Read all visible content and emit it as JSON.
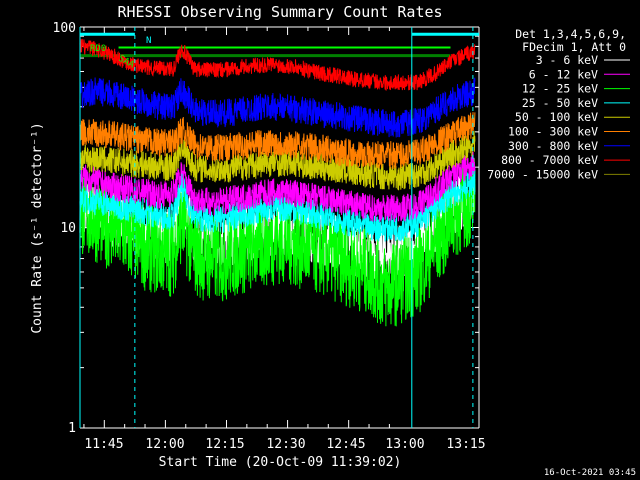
{
  "chart_data": {
    "type": "line",
    "title": "RHESSI Observing Summary Count Rates",
    "xlabel": "Start Time (20-Oct-09 11:39:02)",
    "ylabel": "Count Rate (s⁻¹ detector⁻¹)",
    "yscale": "log",
    "ylim": [
      1,
      100
    ],
    "xlim": [
      "11:39:02",
      "13:17:00"
    ],
    "x_ticks": [
      "11:45",
      "12:00",
      "12:15",
      "12:30",
      "12:45",
      "13:00",
      "13:15"
    ],
    "y_ticks": [
      "1",
      "10",
      "100"
    ],
    "legend_title": [
      "Det 1,3,4,5,6,9,",
      "FDecim 1, Att 0"
    ],
    "legend_position": "right",
    "series": [
      {
        "name": "3 - 6 keV",
        "color": "#ffffff",
        "values": [
          13,
          12,
          11,
          10.5,
          9.5,
          9,
          9.5,
          14,
          9,
          8.5,
          8.5,
          9,
          9.5,
          10,
          10,
          9.5,
          9,
          8.5,
          8,
          7.5,
          7.5,
          7.5,
          8,
          10,
          12.5,
          14.5
        ]
      },
      {
        "name": "6 - 12 keV",
        "color": "#ff00ff",
        "values": [
          18,
          17,
          16,
          15.5,
          15,
          14.5,
          15,
          19,
          14,
          13.5,
          13.5,
          14,
          14.5,
          15,
          15,
          14.5,
          14,
          13.5,
          13,
          12.5,
          12.5,
          12.5,
          13,
          15,
          18,
          21
        ]
      },
      {
        "name": "12 - 25 keV",
        "color": "#00ff00",
        "values": [
          12,
          11,
          10,
          9,
          8,
          7.5,
          7.5,
          11,
          7.5,
          7,
          7,
          7.5,
          8,
          8.5,
          8.5,
          8,
          7.5,
          7,
          6.5,
          6,
          5,
          5.5,
          6,
          8,
          11,
          14
        ]
      },
      {
        "name": "25 - 50 keV",
        "color": "#00ffff",
        "values": [
          14,
          13.5,
          13,
          12.5,
          12,
          11.5,
          11.5,
          16,
          11.5,
          11,
          11,
          11.5,
          12,
          12.5,
          12.5,
          12,
          11.5,
          11,
          10.5,
          10,
          10,
          10,
          10.5,
          12.5,
          14.5,
          17
        ]
      },
      {
        "name": "50 - 100 keV",
        "color": "#cccc00",
        "values": [
          22,
          22,
          21.5,
          21,
          20.5,
          20,
          20,
          26,
          20,
          19.5,
          19.5,
          20,
          20.5,
          21,
          21,
          20.5,
          20,
          19.5,
          19,
          18.5,
          18,
          18,
          18.5,
          20,
          23,
          26
        ]
      },
      {
        "name": "100 - 300 keV",
        "color": "#ff7f00",
        "values": [
          30,
          29.5,
          29,
          28,
          27,
          26.5,
          26.5,
          31,
          26,
          25,
          25,
          25.5,
          26,
          26.5,
          26,
          25.5,
          25,
          24,
          23.5,
          23,
          23,
          23,
          23.5,
          26,
          29,
          33
        ]
      },
      {
        "name": "300 - 800 keV",
        "color": "#0000ff",
        "values": [
          45,
          48,
          46,
          44,
          42,
          40,
          40,
          49,
          39,
          37,
          37,
          38,
          39.5,
          40,
          39.5,
          38.5,
          37,
          36,
          35,
          34,
          33,
          33,
          34,
          38,
          43,
          48
        ]
      },
      {
        "name": "800 - 7000 keV",
        "color": "#ff0000",
        "values": [
          80,
          78,
          72,
          66,
          63,
          62,
          62,
          79,
          62,
          61,
          61,
          63,
          64,
          65,
          64,
          62,
          59,
          57,
          55,
          54,
          53,
          53,
          53,
          58,
          67,
          76
        ]
      },
      {
        "name": "7000 - 15000 keV",
        "color": "#808000",
        "values": []
      }
    ],
    "x_times": [
      "11:39",
      "11:43",
      "11:47",
      "11:51",
      "11:55",
      "11:59",
      "12:02",
      "12:04",
      "12:07",
      "12:10",
      "12:14",
      "12:18",
      "12:22",
      "12:26",
      "12:30",
      "12:34",
      "12:38",
      "12:42",
      "12:46",
      "12:50",
      "12:54",
      "12:58",
      "13:02",
      "13:06",
      "13:10",
      "13:16"
    ],
    "flags": {
      "rdo": {
        "label": "RD0",
        "start": "11:39:02",
        "end": "11:48:30",
        "color": "#00ff00"
      },
      "nightline": {
        "start": "11:48:30",
        "end": "13:10:00",
        "color": "#008000"
      },
      "saa_label": "SAA",
      "n_label": "N",
      "night_bars": [
        {
          "start": "11:39:02",
          "end": "11:52:30"
        },
        {
          "start": "13:00:30",
          "end": "13:17:00"
        }
      ]
    },
    "vertical_markers_solid": [
      "11:39:02",
      "13:00:30"
    ],
    "vertical_markers_dashed": [
      "11:52:30",
      "13:15:30"
    ],
    "marker_color": "#00ffff",
    "grid": false
  },
  "footer": {
    "timestamp": "16-Oct-2021 03:45"
  }
}
